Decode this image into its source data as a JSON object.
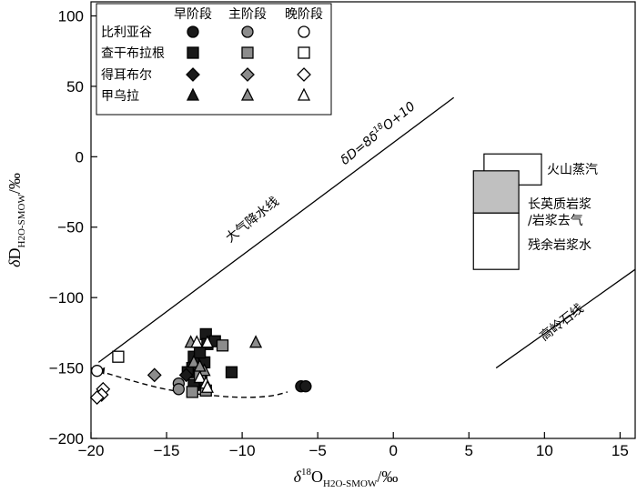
{
  "chart_data": {
    "type": "scatter",
    "xlabel": {
      "delta": "δ",
      "sup": "18",
      "main": "O",
      "sub": "H2O-SMOW",
      "unit": "/‰"
    },
    "ylabel": {
      "delta": "δ",
      "main": "D",
      "sub": "H2O-SMOW",
      "unit": "/‰"
    },
    "xlim": [
      -20,
      16
    ],
    "ylim": [
      -200,
      110
    ],
    "xticks": [
      -20,
      -15,
      -10,
      -5,
      0,
      5,
      10,
      15
    ],
    "yticks": [
      -200,
      -150,
      -100,
      -50,
      0,
      50,
      100
    ],
    "xtick_labels": [
      "−20",
      "−15",
      "−10",
      "−5",
      "0",
      "5",
      "10",
      "15"
    ],
    "ytick_labels": [
      "−200",
      "−150",
      "−100",
      "−50",
      "0",
      "50",
      "100"
    ],
    "legend": {
      "headers": [
        "早阶段",
        "主阶段",
        "晚阶段"
      ],
      "rows": [
        {
          "name": "比利亚谷",
          "shape": "circle"
        },
        {
          "name": "查干布拉根",
          "shape": "square"
        },
        {
          "name": "得耳布尔",
          "shape": "diamond"
        },
        {
          "name": "甲乌拉",
          "shape": "triangle"
        }
      ]
    },
    "stage_styles": {
      "early": {
        "fill": "#1a1a1a",
        "stroke": "#000000"
      },
      "main": {
        "fill": "#8c8c8c",
        "stroke": "#000000"
      },
      "late": {
        "fill": "#ffffff",
        "stroke": "#000000"
      }
    },
    "reference_lines": [
      {
        "name": "大气降水线",
        "x": [
          -19.5,
          4
        ],
        "y": [
          -146,
          42
        ]
      },
      {
        "name": "高岭石线",
        "x": [
          6.8,
          16
        ],
        "y": [
          -150,
          -80
        ]
      }
    ],
    "line_labels": [
      {
        "text": "大气降水线",
        "x": -9,
        "y": -45
      },
      {
        "text": "δD=8δ18O+10",
        "x": -2.5,
        "y": 10
      },
      {
        "text": "高岭石线",
        "x": 11.5,
        "y": -118
      }
    ],
    "regions": [
      {
        "name": "火山蒸汽",
        "x": [
          6.0,
          9.8
        ],
        "y": [
          -20,
          2
        ],
        "fill": "#ffffff"
      },
      {
        "name": "长英质岩浆/岩浆去气",
        "x": [
          5.3,
          8.3
        ],
        "y": [
          -40,
          -10
        ],
        "fill": "#c0c0c0"
      },
      {
        "name": "残余岩浆水",
        "x": [
          5.3,
          8.3
        ],
        "y": [
          -80,
          -40
        ],
        "fill": "#ffffff"
      }
    ],
    "region_labels": [
      "火山蒸汽",
      "长英质岩浆",
      "/岩浆去气",
      "残余岩浆水"
    ],
    "trend_curve": {
      "style": "dashed",
      "x": [
        -19.5,
        -17,
        -15,
        -13,
        -11,
        -9.5,
        -8,
        -7
      ],
      "y": [
        -152,
        -160,
        -165.5,
        -168.5,
        -170.5,
        -171,
        -170,
        -167
      ]
    },
    "series": [
      {
        "name": "比利亚谷",
        "stage": "early",
        "shape": "circle",
        "points": [
          [
            -6.1,
            -163
          ],
          [
            -5.8,
            -163
          ]
        ]
      },
      {
        "name": "比利亚谷",
        "stage": "main",
        "shape": "circle",
        "points": [
          [
            -14.2,
            -161
          ],
          [
            -14.2,
            -165
          ]
        ]
      },
      {
        "name": "比利亚谷",
        "stage": "late",
        "shape": "circle",
        "points": [
          [
            -19.6,
            -152
          ]
        ]
      },
      {
        "name": "查干布拉根",
        "stage": "early",
        "shape": "square",
        "points": [
          [
            -12.4,
            -126
          ],
          [
            -12.3,
            -133
          ],
          [
            -11.8,
            -131
          ],
          [
            -13.2,
            -142
          ],
          [
            -13.3,
            -150
          ],
          [
            -13.6,
            -153
          ],
          [
            -12.5,
            -146
          ],
          [
            -12.7,
            -160
          ],
          [
            -13.2,
            -162
          ],
          [
            -10.7,
            -153
          ],
          [
            -12.8,
            -139
          ]
        ]
      },
      {
        "name": "查干布拉根",
        "stage": "main",
        "shape": "square",
        "points": [
          [
            -11.3,
            -134
          ],
          [
            -12.8,
            -155
          ],
          [
            -12.4,
            -166
          ],
          [
            -13.3,
            -167
          ]
        ]
      },
      {
        "name": "查干布拉根",
        "stage": "late",
        "shape": "square",
        "points": [
          [
            -18.2,
            -142
          ]
        ]
      },
      {
        "name": "得耳布尔",
        "stage": "early",
        "shape": "diamond",
        "points": [
          [
            -13.7,
            -155
          ]
        ]
      },
      {
        "name": "得耳布尔",
        "stage": "main",
        "shape": "diamond",
        "points": [
          [
            -15.8,
            -155
          ]
        ]
      },
      {
        "name": "得耳布尔",
        "stage": "late",
        "shape": "diamond",
        "points": [
          [
            -19.2,
            -165
          ],
          [
            -19.3,
            -169
          ],
          [
            -19.6,
            -171
          ]
        ]
      },
      {
        "name": "甲乌拉",
        "stage": "main",
        "shape": "triangle",
        "points": [
          [
            -13.4,
            -132
          ],
          [
            -13.2,
            -146
          ],
          [
            -12.5,
            -152
          ],
          [
            -9.1,
            -132
          ],
          [
            -12.8,
            -149
          ]
        ]
      },
      {
        "name": "甲乌拉",
        "stage": "late",
        "shape": "triangle",
        "points": [
          [
            -13.0,
            -132
          ],
          [
            -12.3,
            -132
          ],
          [
            -12.8,
            -157
          ],
          [
            -12.4,
            -161
          ],
          [
            -12.3,
            -164
          ]
        ]
      }
    ]
  }
}
